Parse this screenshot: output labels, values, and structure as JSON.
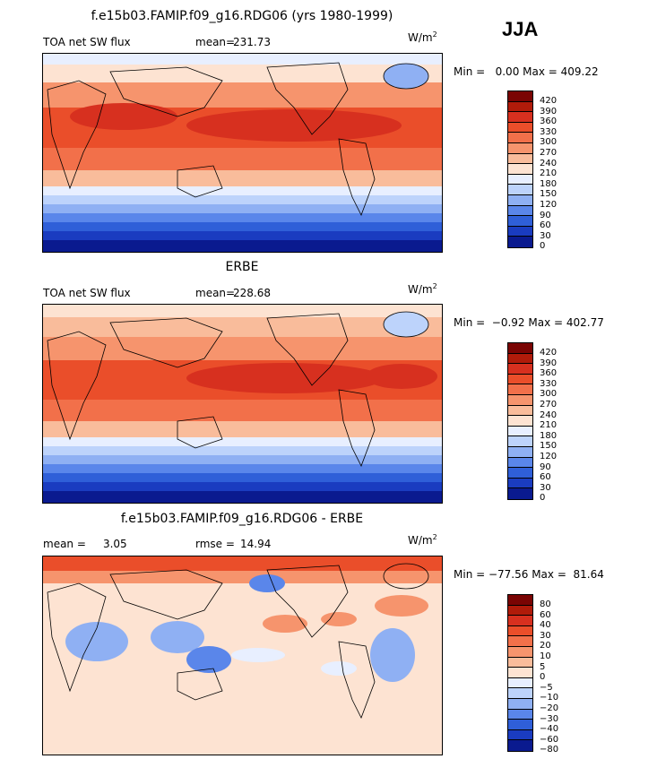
{
  "season": "JJA",
  "units": "W/m",
  "units_exp": "2",
  "panels": [
    {
      "title": "f.e15b03.FAMIP.f09_g16.RDG06 (yrs 1980-1999)",
      "left_label": "TOA net SW flux",
      "stat_label": "mean=",
      "stat_value": "231.73",
      "minmax": "Min =   0.00 Max = 409.22",
      "levels": [
        "420",
        "390",
        "360",
        "330",
        "300",
        "270",
        "240",
        "210",
        "180",
        "150",
        "120",
        "90",
        "60",
        "30",
        "0"
      ]
    },
    {
      "title": "ERBE",
      "left_label": "TOA net SW flux",
      "stat_label": "mean=",
      "stat_value": "228.68",
      "minmax": "Min =  −0.92 Max = 402.77",
      "levels": [
        "420",
        "390",
        "360",
        "330",
        "300",
        "270",
        "240",
        "210",
        "180",
        "150",
        "120",
        "90",
        "60",
        "30",
        "0"
      ]
    },
    {
      "title": "f.e15b03.FAMIP.f09_g16.RDG06 - ERBE",
      "left_label": "mean =     3.05",
      "stat_label": "rmse =",
      "stat_value": "14.94",
      "minmax": "Min = −77.56 Max =  81.64",
      "levels": [
        "80",
        "60",
        "40",
        "30",
        "20",
        "10",
        "5",
        "0",
        "−5",
        "−10",
        "−20",
        "−30",
        "−40",
        "−60",
        "−80"
      ]
    }
  ],
  "colors": {
    "flux": [
      "#7a0403",
      "#b01b0a",
      "#d7301f",
      "#ea4e2a",
      "#f2704a",
      "#f6946d",
      "#f9bc9b",
      "#fde3d2",
      "#e8efff",
      "#bdd3fb",
      "#8fb0f3",
      "#5a86ea",
      "#2f5fd8",
      "#1a3cc0",
      "#0a1a8f"
    ],
    "diff": [
      "#7a0403",
      "#b01b0a",
      "#d7301f",
      "#ea4e2a",
      "#f2704a",
      "#f6946d",
      "#f9bc9b",
      "#fde3d2",
      "#e8efff",
      "#bdd3fb",
      "#8fb0f3",
      "#5a86ea",
      "#2f5fd8",
      "#1a3cc0",
      "#0a1a8f"
    ]
  }
}
